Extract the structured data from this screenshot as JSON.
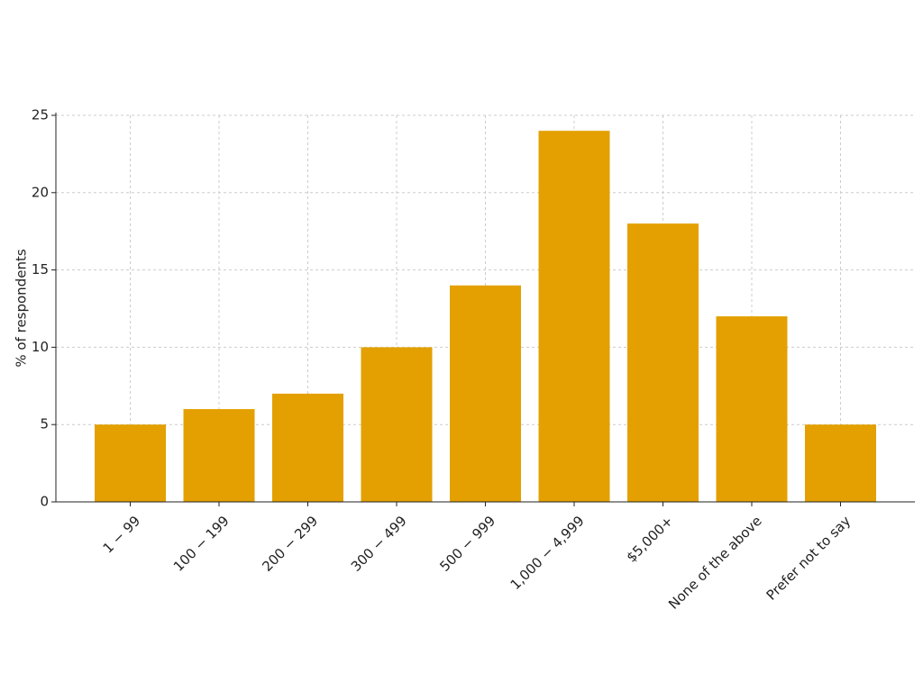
{
  "chart_data": {
    "type": "bar",
    "y_label": "% of respondents",
    "categories": [
      "1 − 99",
      "100 − 199",
      "200 − 299",
      "300 − 499",
      "500 − 999",
      "1,000 − 4,999",
      "$5,000+",
      "None of the above",
      "Prefer not to say"
    ],
    "values": [
      5,
      6,
      7,
      10,
      14,
      24,
      18,
      12,
      5
    ],
    "color": "#e3a000",
    "ylim": [
      0,
      25
    ],
    "yticks": [
      0,
      5,
      10,
      15,
      20,
      25
    ],
    "grid": true
  }
}
